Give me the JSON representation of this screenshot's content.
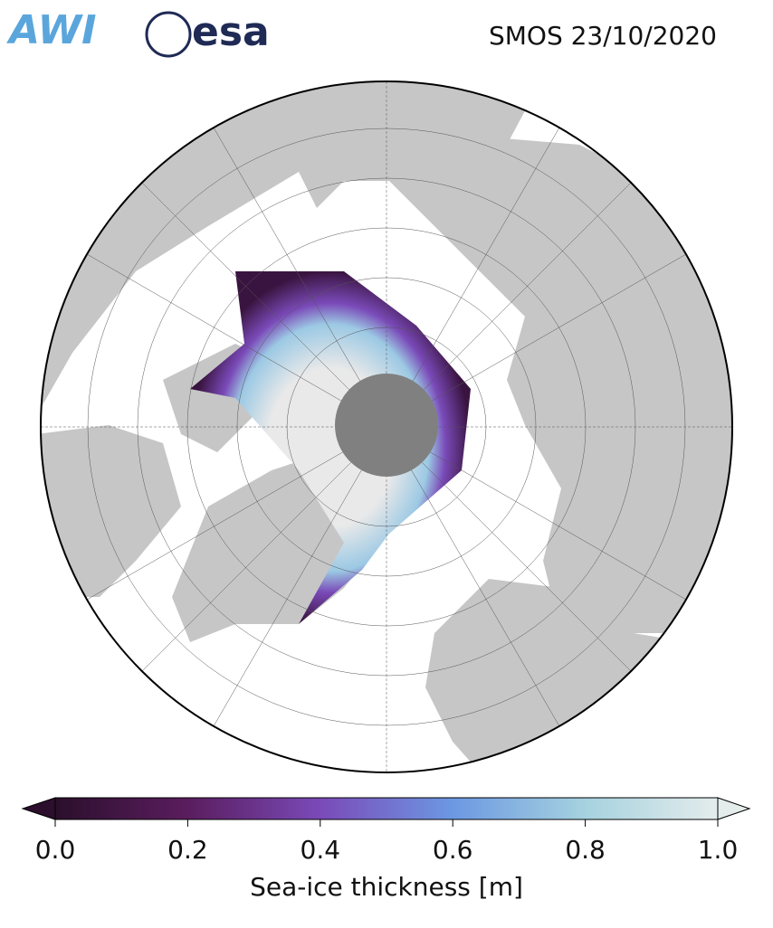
{
  "logos": [
    "AWI",
    "esa"
  ],
  "title": "SMOS 23/10/2020",
  "colorbar": {
    "label": "Sea-ice thickness [m]",
    "lim": [
      0,
      1
    ],
    "ticks": [
      {
        "value": 0,
        "label": "0.0"
      },
      {
        "value": 0.2,
        "label": "0.2"
      },
      {
        "value": 0.4,
        "label": "0.4"
      },
      {
        "value": 0.6,
        "label": "0.6"
      },
      {
        "value": 0.8,
        "label": "0.8"
      },
      {
        "value": 1,
        "label": "1.0"
      }
    ],
    "colors": [
      "#2b0f2c",
      "#5a1d5e",
      "#7a4ab8",
      "#6c98e2",
      "#a6d2df",
      "#e4ecec"
    ]
  }
}
